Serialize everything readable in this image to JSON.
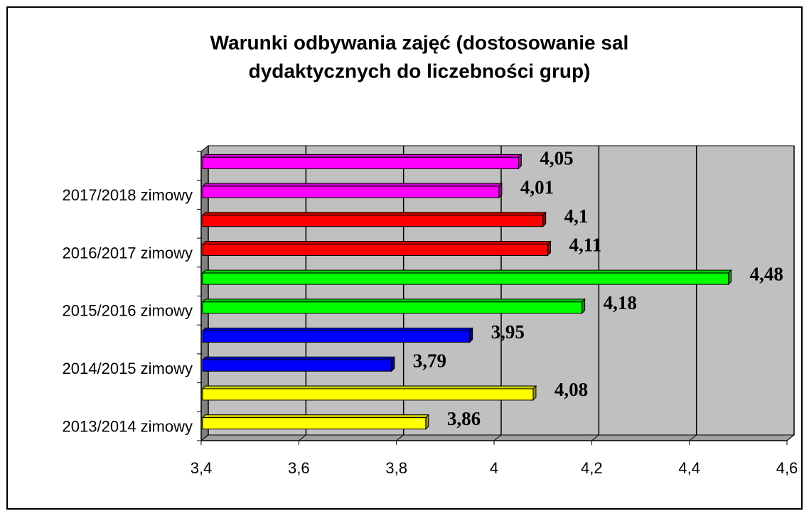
{
  "chart_data": {
    "type": "bar",
    "orientation": "horizontal",
    "title": [
      "Warunki odbywania zajęć (dostosowanie sal",
      "dydaktycznych do liczebności grup)"
    ],
    "categories": [
      "2013/2014 zimowy",
      null,
      "2014/2015 zimowy",
      null,
      "2015/2016 zimowy",
      null,
      "2016/2017 zimowy",
      null,
      "2017/2018 zimowy",
      null
    ],
    "values": [
      3.86,
      4.08,
      3.79,
      3.95,
      4.18,
      4.48,
      4.11,
      4.1,
      4.01,
      4.05
    ],
    "value_labels": [
      "3,86",
      "4,08",
      "3,79",
      "3,95",
      "4,18",
      "4,48",
      "4,11",
      "4,1",
      "4,01",
      "4,05"
    ],
    "colors": [
      "#ffff00",
      "#ffff00",
      "#0000ff",
      "#0000ff",
      "#00ff00",
      "#00ff00",
      "#ff0000",
      "#ff0000",
      "#ff00ff",
      "#ff00ff"
    ],
    "xlim": [
      3.4,
      4.6
    ],
    "xticks": [
      {
        "value": 3.4,
        "label": "3,4"
      },
      {
        "value": 3.6,
        "label": "3,6"
      },
      {
        "value": 3.8,
        "label": "3,8"
      },
      4,
      {
        "value": 4.2,
        "label": "4,2"
      },
      {
        "value": 4.4,
        "label": "4,4"
      },
      {
        "value": 4.6,
        "label": "4,6"
      }
    ],
    "grid": true
  }
}
